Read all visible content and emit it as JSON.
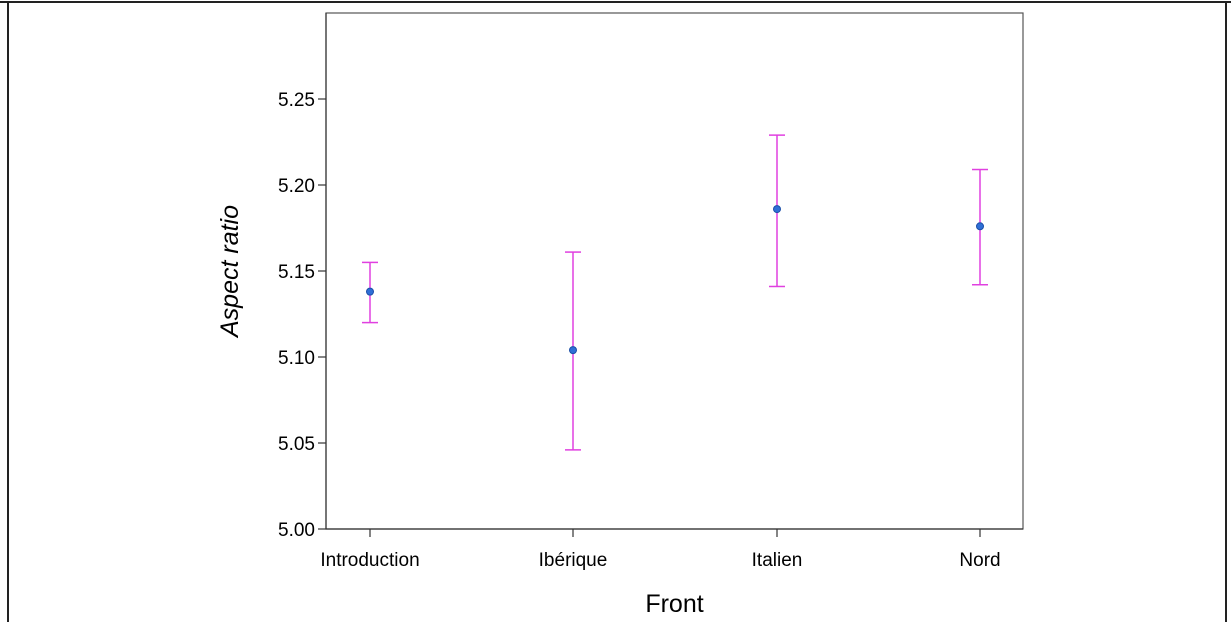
{
  "chart_data": {
    "type": "scatter",
    "subtype": "interval-plot",
    "title": "",
    "xlabel": "Front",
    "ylabel": "Aspect ratio",
    "categories": [
      "Introduction",
      "Ibérique",
      "Italien",
      "Nord"
    ],
    "series": [
      {
        "mean": [
          5.138,
          5.104,
          5.186,
          5.176
        ],
        "lower": [
          5.12,
          5.046,
          5.141,
          5.142
        ],
        "upper": [
          5.155,
          5.161,
          5.229,
          5.209
        ]
      }
    ],
    "ylim": [
      5.0,
      5.3
    ],
    "yticks": [
      "5.00",
      "5.05",
      "5.10",
      "5.15",
      "5.20",
      "5.25"
    ],
    "grid": false,
    "legend": "none",
    "colors": {
      "point": "#2f6fd6",
      "point_stroke": "#1b4fa8",
      "error_bar": "#e040e0",
      "axis": "#333333",
      "frame": "#222222"
    }
  }
}
